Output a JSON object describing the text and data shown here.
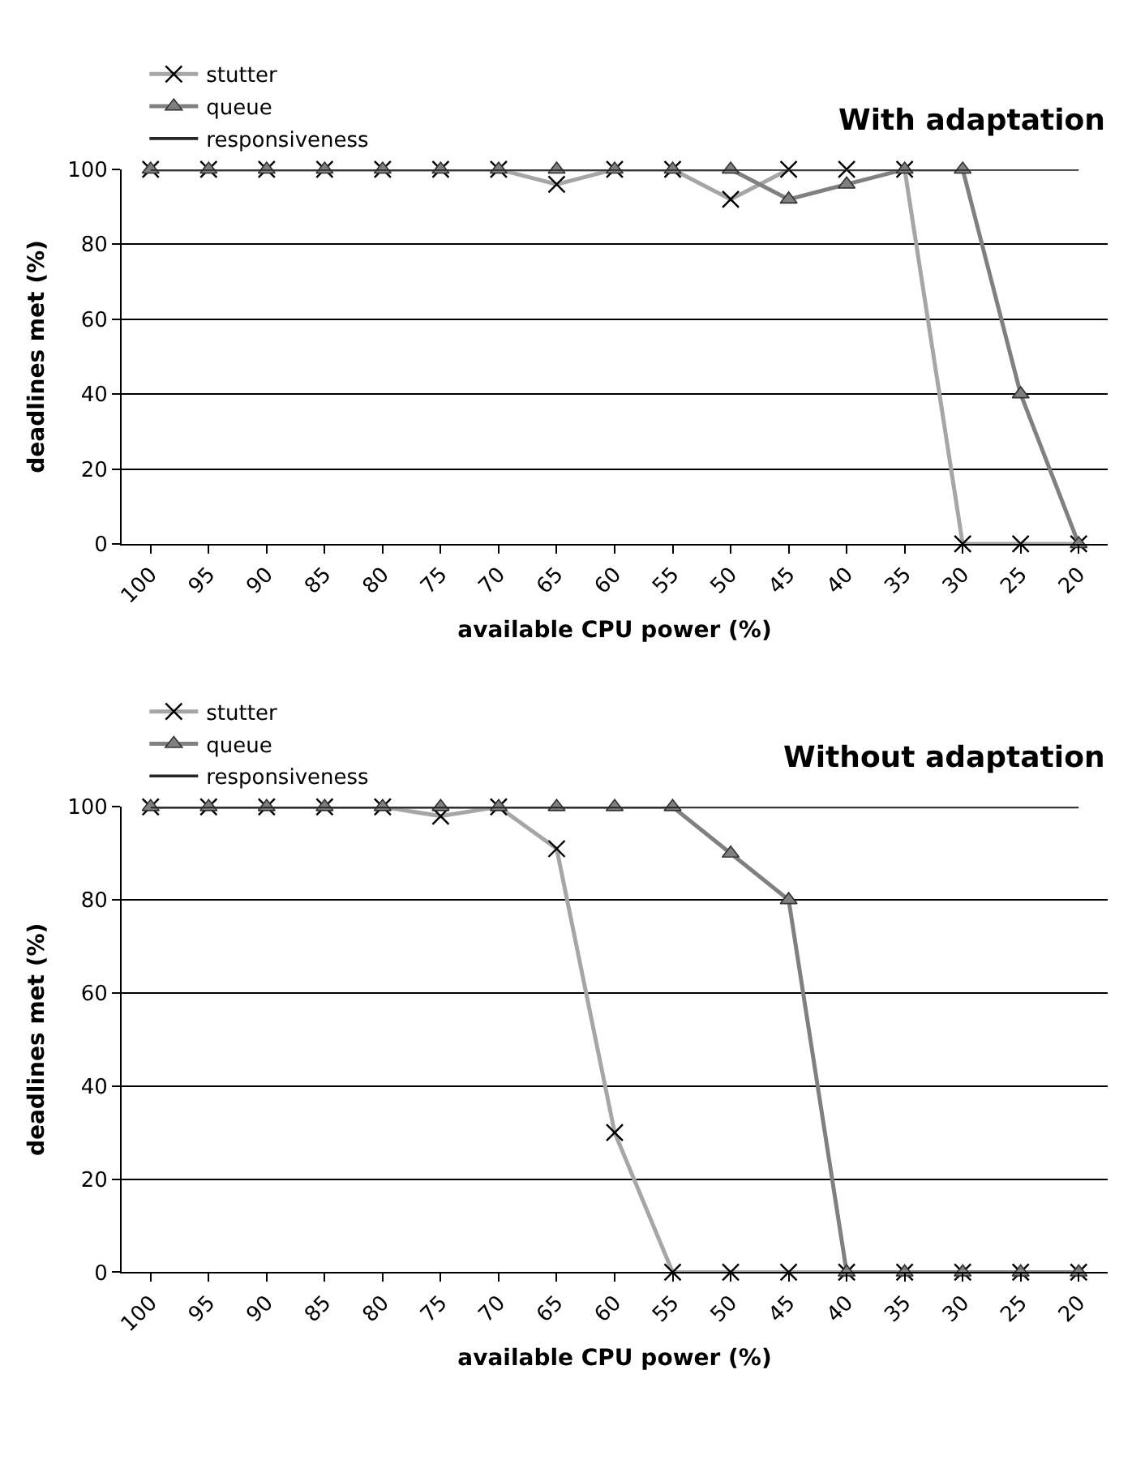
{
  "chart_data": [
    {
      "type": "line",
      "title": "With adaptation",
      "xlabel": "available CPU power (%)",
      "ylabel": "deadlines met (%)",
      "categories": [
        "100",
        "95",
        "90",
        "85",
        "80",
        "75",
        "70",
        "65",
        "60",
        "55",
        "50",
        "45",
        "40",
        "35",
        "30",
        "25",
        "20"
      ],
      "series": [
        {
          "name": "stutter",
          "color": "#a6a6a6",
          "marker": "cross",
          "values": [
            100,
            100,
            100,
            100,
            100,
            100,
            100,
            96,
            100,
            100,
            92,
            100,
            100,
            100,
            0,
            0,
            0
          ]
        },
        {
          "name": "queue",
          "color": "#808080",
          "marker": "triangle",
          "values": [
            100,
            100,
            100,
            100,
            100,
            100,
            100,
            100,
            100,
            100,
            100,
            92,
            96,
            100,
            100,
            40,
            0
          ]
        },
        {
          "name": "responsiveness",
          "color": "#262626",
          "marker": "none",
          "values": [
            100,
            100,
            100,
            100,
            100,
            100,
            100,
            100,
            100,
            100,
            100,
            100,
            100,
            100,
            100,
            100,
            100
          ]
        }
      ],
      "ylim": [
        0,
        100
      ],
      "yticks": [
        0,
        20,
        40,
        60,
        80,
        100
      ],
      "grid": "y",
      "legend": "top left"
    },
    {
      "type": "line",
      "title": "Without adaptation",
      "xlabel": "available CPU power (%)",
      "ylabel": "deadlines met (%)",
      "categories": [
        "100",
        "95",
        "90",
        "85",
        "80",
        "75",
        "70",
        "65",
        "60",
        "55",
        "50",
        "45",
        "40",
        "35",
        "30",
        "25",
        "20"
      ],
      "series": [
        {
          "name": "stutter",
          "color": "#a6a6a6",
          "marker": "cross",
          "values": [
            100,
            100,
            100,
            100,
            100,
            98,
            100,
            91,
            30,
            0,
            0,
            0,
            0,
            0,
            0,
            0,
            0
          ]
        },
        {
          "name": "queue",
          "color": "#808080",
          "marker": "triangle",
          "values": [
            100,
            100,
            100,
            100,
            100,
            100,
            100,
            100,
            100,
            100,
            90,
            80,
            0,
            0,
            0,
            0,
            0
          ]
        },
        {
          "name": "responsiveness",
          "color": "#262626",
          "marker": "none",
          "values": [
            100,
            100,
            100,
            100,
            100,
            100,
            100,
            100,
            100,
            100,
            100,
            100,
            100,
            100,
            100,
            100,
            100
          ]
        }
      ],
      "ylim": [
        0,
        100
      ],
      "yticks": [
        0,
        20,
        40,
        60,
        80,
        100
      ],
      "grid": "y",
      "legend": "top left"
    }
  ]
}
